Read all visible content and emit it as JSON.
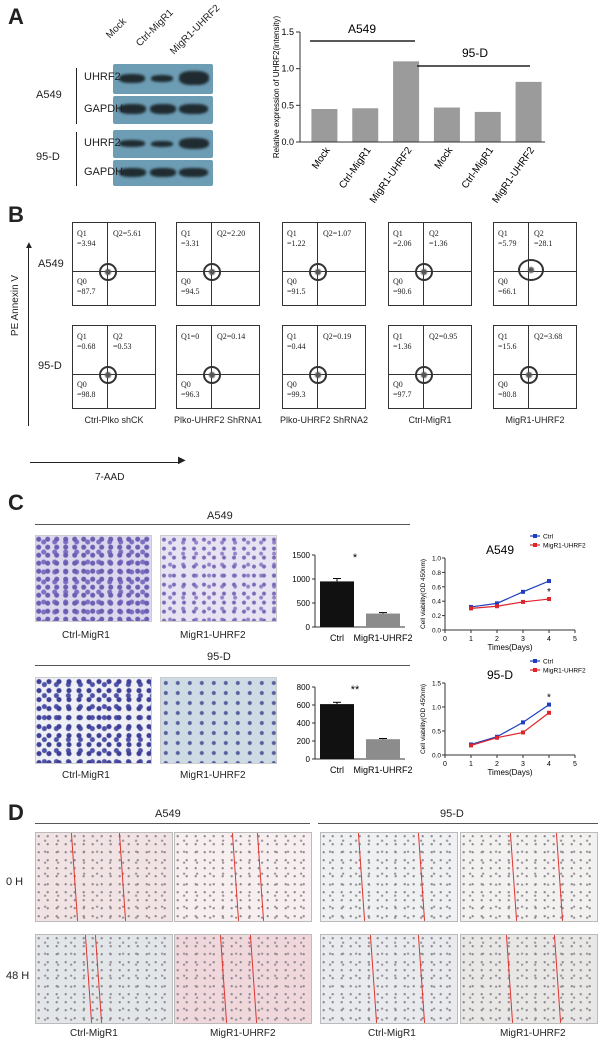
{
  "panelA": {
    "letter": "A",
    "lanes": [
      "Mock",
      "Ctrl-MigR1",
      "MigR1-UHRF2"
    ],
    "rows": [
      {
        "group": "A549",
        "bands": [
          "UHRF2",
          "GAPDH"
        ]
      },
      {
        "group": "95-D",
        "bands": [
          "UHRF2",
          "GAPDH"
        ]
      }
    ]
  },
  "panelB": {
    "letter": "B",
    "y_label": "PE Annexin V",
    "x_label": "7-AAD",
    "rows": [
      "A549",
      "95-D"
    ],
    "columns": [
      "Ctrl-Plko shCK",
      "Plko-UHRF2 ShRNA1",
      "Plko-UHRF2 ShRNA2",
      "Ctrl-MigR1",
      "MigR1-UHRF2"
    ],
    "plots": [
      [
        {
          "q1": "Q1\n=3.94",
          "q2": "Q2=5.61",
          "q0": "Q0\n=87.7"
        },
        {
          "q1": "Q1\n=3.31",
          "q2": "Q2=2.20",
          "q0": "Q0\n=94.5"
        },
        {
          "q1": "Q1\n=1.22",
          "q2": "Q2=1.07",
          "q0": "Q0\n=91.5"
        },
        {
          "q1": "Q1\n=2.06",
          "q2": "Q2\n=1.36",
          "q0": "Q0\n=90.6"
        },
        {
          "q1": "Q1\n=5.79",
          "q2": "Q2\n=28.1",
          "q0": "Q0\n=66.1"
        }
      ],
      [
        {
          "q1": "Q1\n=0.68",
          "q2": "Q2\n=0.53",
          "q0": "Q0\n=98.8"
        },
        {
          "q1": "Q1=0",
          "q2": "Q2=0.14",
          "q0": "Q0\n=96.3"
        },
        {
          "q1": "Q1\n=0.44",
          "q2": "Q2=0.19",
          "q0": "Q0\n=99.3"
        },
        {
          "q1": "Q1\n=1.36",
          "q2": "Q2=0.95",
          "q0": "Q0\n=97.7"
        },
        {
          "q1": "Q1\n=15.6",
          "q2": "Q2=3.68",
          "q0": "Q0\n=80.8"
        }
      ]
    ]
  },
  "panelC": {
    "letter": "C",
    "rows": [
      {
        "title": "A549",
        "images": [
          "Ctrl-MigR1",
          "MigR1-UHRF2"
        ],
        "bar_sig": "*",
        "line_title": "A549",
        "line_sig": "*"
      },
      {
        "title": "95-D",
        "images": [
          "Ctrl-MigR1",
          "MigR1-UHRF2"
        ],
        "bar_sig": "**",
        "line_title": "95-D",
        "line_sig": "*"
      }
    ]
  },
  "panelD": {
    "letter": "D",
    "groups": [
      "A549",
      "95-D"
    ],
    "rows": [
      "0 H",
      "48 H"
    ],
    "columns": [
      "Ctrl-MigR1",
      "MigR1-UHRF2",
      "Ctrl-MigR1",
      "MigR1-UHRF2"
    ]
  },
  "chart_data": [
    {
      "type": "bar",
      "title": "",
      "ylabel": "Relative expression of UHRF2(intensity)",
      "groups": [
        "A549",
        "95-D"
      ],
      "categories": [
        "Mock",
        "Ctrl-MigR1",
        "MigR1-UHRF2",
        "Mock",
        "Ctrl-MigR1",
        "MigR1-UHRF2"
      ],
      "values": [
        0.45,
        0.46,
        1.1,
        0.47,
        0.41,
        0.82
      ],
      "ylim": [
        0,
        1.5
      ],
      "yticks": [
        "0.0",
        "0.5",
        "1.0",
        "1.5"
      ],
      "color": "#9b9b9b"
    },
    {
      "type": "bar",
      "categories": [
        "Ctrl",
        "MigR1-UHRF2"
      ],
      "values": [
        950,
        280
      ],
      "errors": [
        60,
        20
      ],
      "ylim": [
        0,
        1500
      ],
      "yticks": [
        "0",
        "500",
        "1000",
        "1500"
      ],
      "colors": [
        "#111111",
        "#8c8c8c"
      ],
      "annotation": "*"
    },
    {
      "type": "line",
      "title": "A549",
      "xlabel": "Times(Days)",
      "ylabel": "Cell viability(OD 450nm)",
      "x": [
        1,
        2,
        3,
        4
      ],
      "xlim": [
        0,
        5
      ],
      "ylim": [
        0,
        1.0
      ],
      "xticks": [
        "0",
        "1",
        "2",
        "3",
        "4",
        "5"
      ],
      "yticks": [
        "0.0",
        "0.2",
        "0.4",
        "0.6",
        "0.8",
        "1.0"
      ],
      "series": [
        {
          "name": "Ctrl",
          "values": [
            0.32,
            0.37,
            0.53,
            0.68
          ],
          "color": "#1f3fbf"
        },
        {
          "name": "MigR1-UHRF2",
          "values": [
            0.3,
            0.33,
            0.39,
            0.43
          ],
          "color": "#e0242c"
        }
      ],
      "annotation": "*"
    },
    {
      "type": "bar",
      "categories": [
        "Ctrl",
        "MigR1-UHRF2"
      ],
      "values": [
        610,
        220
      ],
      "errors": [
        20,
        8
      ],
      "ylim": [
        0,
        800
      ],
      "yticks": [
        "0",
        "200",
        "400",
        "600",
        "800"
      ],
      "colors": [
        "#111111",
        "#8c8c8c"
      ],
      "annotation": "**"
    },
    {
      "type": "line",
      "title": "95-D",
      "xlabel": "Times(Days)",
      "ylabel": "Cell viability(OD 450nm)",
      "x": [
        1,
        2,
        3,
        4
      ],
      "xlim": [
        0,
        5
      ],
      "ylim": [
        0,
        1.5
      ],
      "xticks": [
        "0",
        "1",
        "2",
        "3",
        "4",
        "5"
      ],
      "yticks": [
        "0.0",
        "0.5",
        "1.0",
        "1.5"
      ],
      "series": [
        {
          "name": "Ctrl",
          "values": [
            0.22,
            0.38,
            0.68,
            1.05
          ],
          "color": "#1f3fbf"
        },
        {
          "name": "MigR1-UHRF2",
          "values": [
            0.2,
            0.36,
            0.47,
            0.88
          ],
          "color": "#e0242c"
        }
      ],
      "annotation": "*"
    }
  ]
}
